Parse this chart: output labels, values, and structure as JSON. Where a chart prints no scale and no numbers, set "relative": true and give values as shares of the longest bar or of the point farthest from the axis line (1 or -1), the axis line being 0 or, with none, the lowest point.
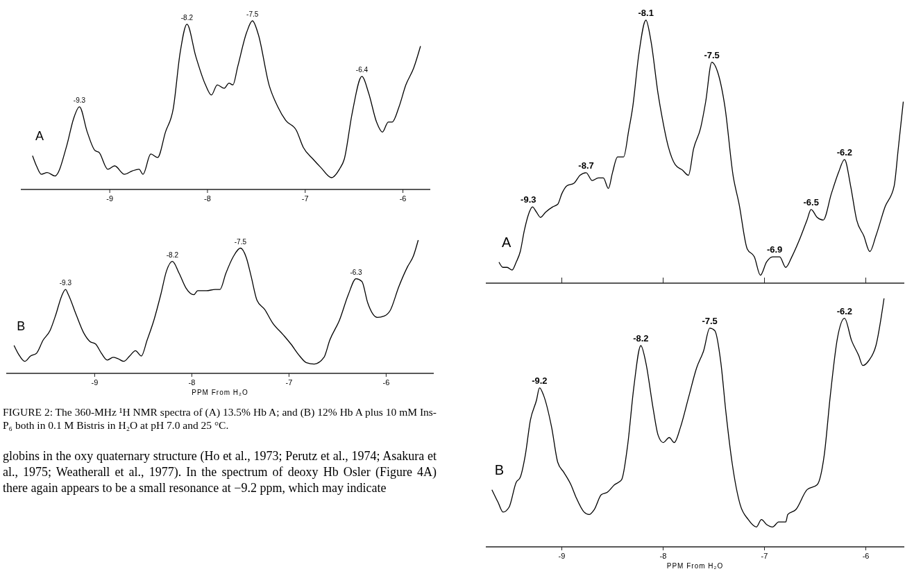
{
  "chart_data": [
    {
      "type": "line",
      "relative": true,
      "xlim": [
        -9.91,
        -5.72
      ],
      "xticks": [
        -9,
        -8,
        -7,
        -6
      ],
      "x": [
        -9.79,
        -9.75,
        -9.7,
        -9.64,
        -9.56,
        -9.44,
        -9.37,
        -9.31,
        -9.23,
        -9.15,
        -9.11,
        -9.02,
        -8.95,
        -8.85,
        -8.77,
        -8.7,
        -8.66,
        -8.58,
        -8.51,
        -8.43,
        -8.35,
        -8.28,
        -8.21,
        -8.12,
        -8.02,
        -7.96,
        -7.9,
        -7.83,
        -7.78,
        -7.74,
        -7.69,
        -7.6,
        -7.54,
        -7.48,
        -7.37,
        -7.28,
        -7.2,
        -7.09,
        -7.02,
        -6.92,
        -6.84,
        -6.73,
        -6.65,
        -6.6,
        -6.52,
        -6.42,
        -6.35,
        -6.27,
        -6.21,
        -6.15,
        -6.11,
        -6.04,
        -5.97,
        -5.89,
        -5.82
      ],
      "series": [
        {
          "name": "A",
          "color": "#000000",
          "values": [
            0.2,
            0.14,
            0.09,
            0.1,
            0.08,
            0.26,
            0.42,
            0.49,
            0.34,
            0.23,
            0.22,
            0.12,
            0.14,
            0.09,
            0.11,
            0.12,
            0.09,
            0.21,
            0.19,
            0.34,
            0.48,
            0.81,
            0.98,
            0.79,
            0.62,
            0.56,
            0.62,
            0.6,
            0.63,
            0.62,
            0.73,
            0.93,
            1,
            0.92,
            0.62,
            0.49,
            0.41,
            0.35,
            0.25,
            0.18,
            0.13,
            0.07,
            0.12,
            0.18,
            0.45,
            0.67,
            0.57,
            0.4,
            0.34,
            0.4,
            0.4,
            0.49,
            0.62,
            0.72,
            0.85
          ]
        }
      ],
      "annotations": [
        {
          "text": "-9.3",
          "x": -9.31,
          "y": 0.49
        },
        {
          "text": "-8.2",
          "x": -8.21,
          "y": 0.98
        },
        {
          "text": "-7.5",
          "x": -7.54,
          "y": 1
        },
        {
          "text": "-6.4",
          "x": -6.42,
          "y": 0.67
        }
      ]
    },
    {
      "type": "line",
      "relative": true,
      "xlim": [
        -9.91,
        -5.51
      ],
      "xticks": [
        -9,
        -8,
        -7,
        -6
      ],
      "xlabel": "PPM From H₂O",
      "x": [
        -9.83,
        -9.78,
        -9.72,
        -9.66,
        -9.6,
        -9.53,
        -9.46,
        -9.4,
        -9.34,
        -9.3,
        -9.27,
        -9.19,
        -9.11,
        -9.05,
        -8.99,
        -8.93,
        -8.87,
        -8.81,
        -8.76,
        -8.7,
        -8.64,
        -8.58,
        -8.52,
        -8.46,
        -8.39,
        -8.32,
        -8.26,
        -8.2,
        -8.13,
        -8.06,
        -7.98,
        -7.94,
        -7.85,
        -7.76,
        -7.71,
        -7.65,
        -7.57,
        -7.5,
        -7.44,
        -7.39,
        -7.33,
        -7.25,
        -7.17,
        -7.06,
        -6.98,
        -6.89,
        -6.82,
        -6.74,
        -6.64,
        -6.58,
        -6.48,
        -6.39,
        -6.31,
        -6.25,
        -6.19,
        -6.09,
        -6.02,
        -5.96,
        -5.87,
        -5.78,
        -5.72,
        -5.67
      ],
      "series": [
        {
          "name": "B",
          "color": "#000000",
          "values": [
            0.21,
            0.14,
            0.09,
            0.13,
            0.15,
            0.25,
            0.32,
            0.44,
            0.58,
            0.63,
            0.59,
            0.44,
            0.3,
            0.24,
            0.22,
            0.15,
            0.1,
            0.12,
            0.11,
            0.09,
            0.13,
            0.17,
            0.13,
            0.25,
            0.4,
            0.59,
            0.77,
            0.84,
            0.75,
            0.64,
            0.59,
            0.62,
            0.62,
            0.63,
            0.63,
            0.75,
            0.88,
            0.94,
            0.87,
            0.73,
            0.55,
            0.48,
            0.38,
            0.29,
            0.22,
            0.13,
            0.08,
            0.07,
            0.12,
            0.25,
            0.4,
            0.59,
            0.71,
            0.69,
            0.53,
            0.42,
            0.43,
            0.47,
            0.65,
            0.8,
            0.88,
            1
          ]
        }
      ],
      "annotations": [
        {
          "text": "-9.3",
          "x": -9.3,
          "y": 0.63
        },
        {
          "text": "-8.2",
          "x": -8.2,
          "y": 0.84
        },
        {
          "text": "-7.5",
          "x": -7.5,
          "y": 0.94
        },
        {
          "text": "-6.3",
          "x": -6.31,
          "y": 0.71
        },
        "FIGURE 2: The 360-MHz ¹H NMR spectra of (A) 13.5% Hb A; and (B) 12% Hb A plus 10 mM Ins-P₆ both in 0.1 M Bistris in H₂O at pH 7.0 and 25 °C.",
        "globins in the oxy quaternary structure (Ho et al., 1973; Perutz et al., 1974; Asakura et al., 1975; Weatherall et al., 1977). In the spectrum of deoxy Hb Osler (Figure 4A) there again appears to be a small resonance at −9.2 ppm, which may indicate"
      ]
    },
    {
      "type": "line",
      "relative": true,
      "xlim": [
        -9.75,
        -5.62
      ],
      "xticks": [
        -9,
        -8,
        -7,
        -6
      ],
      "tick_labels": false,
      "x": [
        -9.62,
        -9.58,
        -9.54,
        -9.49,
        -9.45,
        -9.41,
        -9.37,
        -9.33,
        -9.29,
        -9.25,
        -9.21,
        -9.16,
        -9.09,
        -9.04,
        -9,
        -8.95,
        -8.88,
        -8.82,
        -8.76,
        -8.7,
        -8.64,
        -8.59,
        -8.54,
        -8.5,
        -8.45,
        -8.39,
        -8.34,
        -8.3,
        -8.24,
        -8.17,
        -8.12,
        -8.05,
        -8.01,
        -7.95,
        -7.88,
        -7.81,
        -7.75,
        -7.7,
        -7.63,
        -7.58,
        -7.52,
        -7.46,
        -7.39,
        -7.31,
        -7.25,
        -7.17,
        -7.1,
        -7.04,
        -6.98,
        -6.92,
        -6.85,
        -6.79,
        -6.73,
        -6.66,
        -6.58,
        -6.54,
        -6.48,
        -6.42,
        -6.34,
        -6.27,
        -6.21,
        -6.15,
        -6.09,
        -6.02,
        -5.96,
        -5.9,
        -5.81,
        -5.72,
        -5.68,
        -5.63
      ],
      "series": [
        {
          "name": "A",
          "color": "#000000",
          "values": [
            0.08,
            0.06,
            0.06,
            0.05,
            0.08,
            0.12,
            0.2,
            0.26,
            0.29,
            0.27,
            0.25,
            0.27,
            0.29,
            0.3,
            0.34,
            0.37,
            0.38,
            0.41,
            0.42,
            0.39,
            0.4,
            0.4,
            0.36,
            0.42,
            0.48,
            0.48,
            0.58,
            0.67,
            0.87,
            1,
            0.92,
            0.72,
            0.63,
            0.52,
            0.45,
            0.43,
            0.41,
            0.51,
            0.59,
            0.69,
            0.84,
            0.8,
            0.67,
            0.41,
            0.3,
            0.13,
            0.1,
            0.03,
            0.08,
            0.1,
            0.1,
            0.06,
            0.1,
            0.16,
            0.24,
            0.28,
            0.25,
            0.24,
            0.34,
            0.42,
            0.47,
            0.37,
            0.24,
            0.18,
            0.12,
            0.18,
            0.29,
            0.37,
            0.51,
            0.69
          ]
        }
      ],
      "annotations": [
        {
          "text": "-9.3",
          "x": -9.33,
          "y": 0.29
        },
        {
          "text": "-8.7",
          "x": -8.76,
          "y": 0.42
        },
        {
          "text": "-8.1",
          "x": -8.17,
          "y": 1
        },
        {
          "text": "-7.5",
          "x": -7.52,
          "y": 0.84
        },
        {
          "text": "-6.9",
          "x": -6.9,
          "y": 0.1
        },
        {
          "text": "-6.5",
          "x": -6.54,
          "y": 0.28
        },
        {
          "text": "-6.2",
          "x": -6.21,
          "y": 0.47
        }
      ]
    },
    {
      "type": "line",
      "relative": true,
      "xlim": [
        -9.75,
        -5.62
      ],
      "xticks": [
        -9,
        -8,
        -7,
        -6
      ],
      "xlabel": "PPM From H₂O",
      "x": [
        -9.69,
        -9.63,
        -9.58,
        -9.52,
        -9.45,
        -9.41,
        -9.36,
        -9.31,
        -9.25,
        -9.22,
        -9.18,
        -9.1,
        -9.04,
        -8.98,
        -8.91,
        -8.86,
        -8.78,
        -8.73,
        -8.68,
        -8.61,
        -8.55,
        -8.48,
        -8.41,
        -8.35,
        -8.29,
        -8.22,
        -8.17,
        -8.1,
        -8.05,
        -8,
        -7.94,
        -7.89,
        -7.83,
        -7.75,
        -7.67,
        -7.6,
        -7.54,
        -7.49,
        -7.43,
        -7.38,
        -7.32,
        -7.24,
        -7.16,
        -7.08,
        -7.03,
        -6.98,
        -6.92,
        -6.86,
        -6.79,
        -6.77,
        -6.69,
        -6.58,
        -6.48,
        -6.41,
        -6.35,
        -6.28,
        -6.21,
        -6.14,
        -6.07,
        -6.03,
        -5.97,
        -5.9,
        -5.82
      ],
      "series": [
        {
          "name": "B",
          "color": "#000000",
          "values": [
            0.23,
            0.18,
            0.14,
            0.16,
            0.26,
            0.28,
            0.37,
            0.51,
            0.59,
            0.64,
            0.61,
            0.48,
            0.34,
            0.3,
            0.25,
            0.2,
            0.14,
            0.13,
            0.15,
            0.21,
            0.22,
            0.25,
            0.27,
            0.41,
            0.64,
            0.81,
            0.74,
            0.56,
            0.45,
            0.42,
            0.44,
            0.42,
            0.48,
            0.6,
            0.72,
            0.79,
            0.88,
            0.87,
            0.74,
            0.54,
            0.34,
            0.17,
            0.11,
            0.08,
            0.11,
            0.09,
            0.08,
            0.1,
            0.1,
            0.13,
            0.15,
            0.23,
            0.25,
            0.37,
            0.61,
            0.84,
            0.92,
            0.83,
            0.77,
            0.73,
            0.75,
            0.81,
            1
          ]
        }
      ],
      "annotations": [
        {
          "text": "-9.2",
          "x": -9.22,
          "y": 0.64
        },
        {
          "text": "-8.2",
          "x": -8.22,
          "y": 0.81
        },
        {
          "text": "-7.5",
          "x": -7.54,
          "y": 0.88
        },
        {
          "text": "-6.2",
          "x": -6.21,
          "y": 0.92
        }
      ]
    }
  ]
}
